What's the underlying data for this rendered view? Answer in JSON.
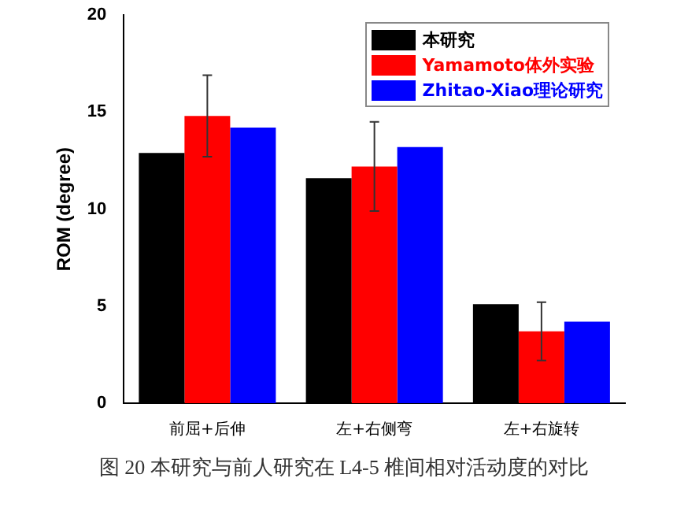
{
  "chart_data": {
    "type": "bar",
    "ylabel": "ROM (degree)",
    "categories": [
      "前屈+后伸",
      "左+右侧弯",
      "左+右旋转"
    ],
    "series": [
      {
        "name": "本研究",
        "color": "#000000",
        "values": [
          12.9,
          11.6,
          5.1
        ]
      },
      {
        "name": "Yamamoto体外实验",
        "color": "#ff0000",
        "values": [
          14.8,
          12.2,
          3.7
        ],
        "errors": [
          2.1,
          2.3,
          1.5
        ]
      },
      {
        "name": "Zhitao-Xiao理论研究",
        "color": "#0000ff",
        "values": [
          14.2,
          13.2,
          4.2
        ]
      }
    ],
    "ylim": [
      0,
      20
    ],
    "yticks": [
      0,
      5,
      10,
      15,
      20
    ],
    "grid": false,
    "legend": "top right",
    "annotations": [
      "图 20  本研究与前人研究在 L4-5 椎间相对活动度的对比"
    ]
  }
}
